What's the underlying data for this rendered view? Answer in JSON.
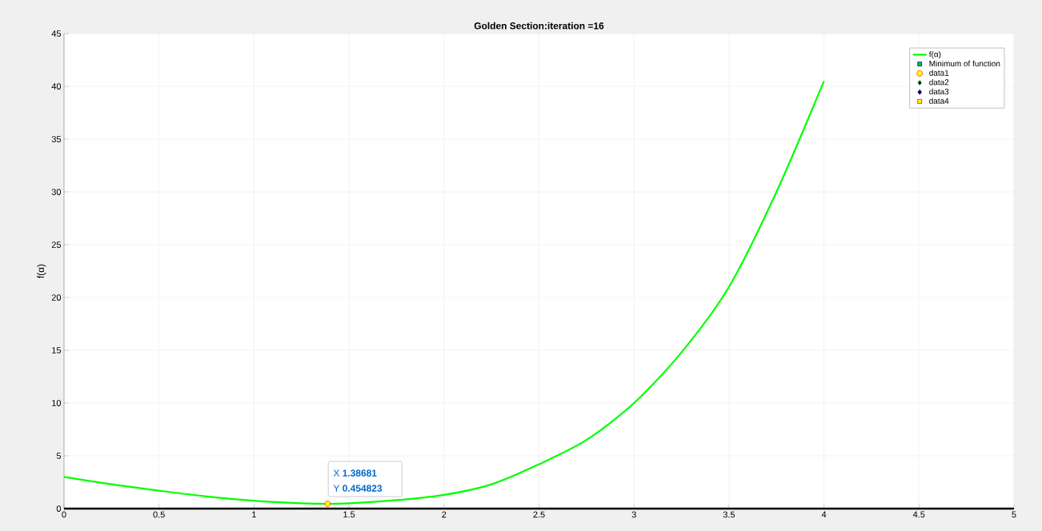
{
  "chart_data": {
    "type": "line",
    "title": "Golden Section:iteration =16",
    "ylabel": "f(α)",
    "xlim": [
      0,
      5
    ],
    "ylim": [
      0,
      45
    ],
    "xticks": [
      0,
      0.5,
      1,
      1.5,
      2,
      2.5,
      3,
      3.5,
      4,
      4.5,
      5
    ],
    "yticks": [
      0,
      5,
      10,
      15,
      20,
      25,
      30,
      35,
      40,
      45
    ],
    "grid": true,
    "legend": "top right",
    "series": [
      {
        "name": "f(α)",
        "color": "#00ff00",
        "marker": "none",
        "x": [
          0,
          0.25,
          0.5,
          0.75,
          1,
          1.25,
          1.38681,
          1.5,
          1.75,
          2,
          2.25,
          2.5,
          2.75,
          3,
          3.25,
          3.5,
          3.75,
          4
        ],
        "values": [
          3,
          2.3,
          1.7,
          1.15,
          0.75,
          0.5,
          0.45,
          0.5,
          0.8,
          1.3,
          2.3,
          4.2,
          6.5,
          10,
          14.8,
          21,
          30,
          40.5
        ]
      },
      {
        "name": "Minimum of function",
        "type": "scatter",
        "color": "#00cc00",
        "marker": "square",
        "values": [
          null
        ]
      },
      {
        "name": "data1",
        "type": "scatter",
        "color": "#ffff00",
        "marker": "circle",
        "x": [
          1.38681
        ],
        "values": [
          0.454823
        ]
      },
      {
        "name": "data2",
        "type": "scatter",
        "color": "#000000",
        "marker": "diamond",
        "values": [
          null
        ]
      },
      {
        "name": "data3",
        "type": "scatter",
        "color": "#000033",
        "marker": "diamond",
        "values": [
          null
        ]
      },
      {
        "name": "data4",
        "type": "scatter",
        "color": "#ffff00",
        "marker": "square",
        "values": [
          null
        ]
      }
    ],
    "annotations": [
      {
        "text": "X **1.38681**",
        "x": 1.38681,
        "y": 0.454823
      },
      {
        "text": "Y **0.454823**",
        "x": 1.38681,
        "y": 0.454823
      }
    ]
  }
}
